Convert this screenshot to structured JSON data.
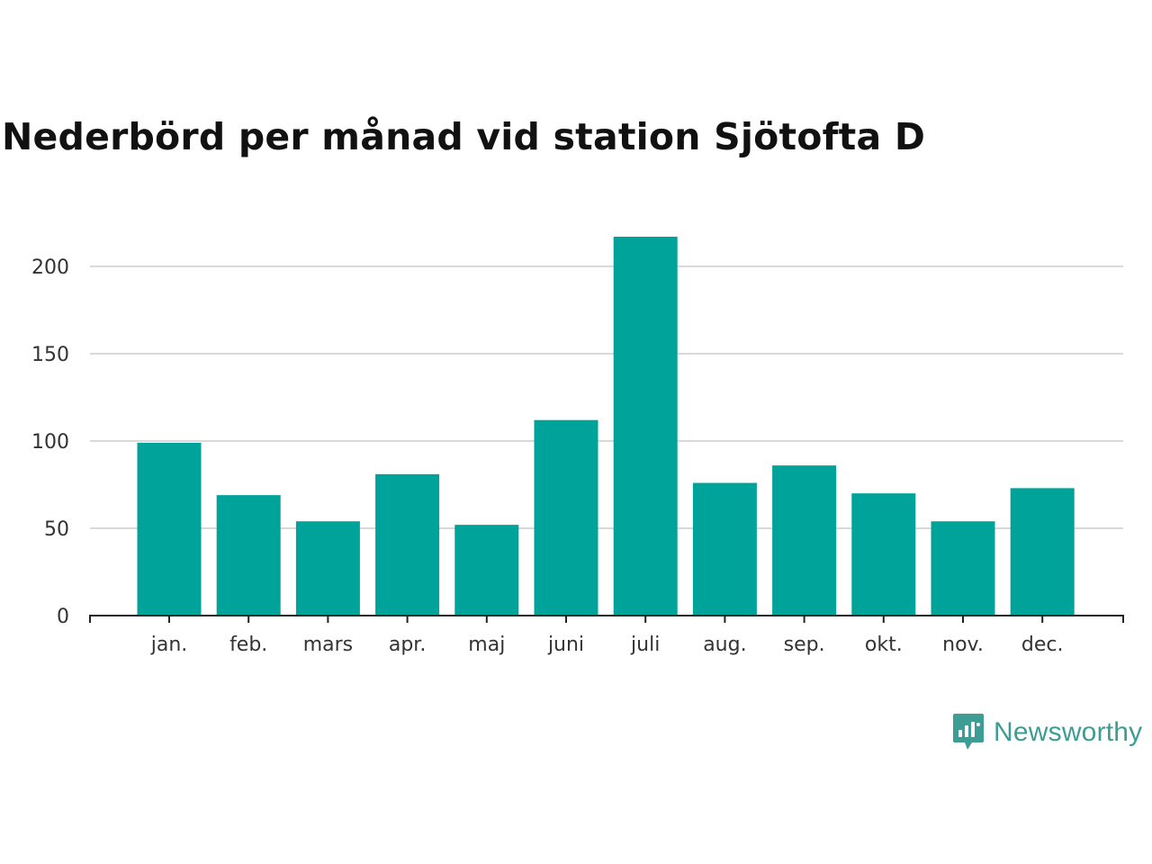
{
  "title": "Nederbörd per månad vid station Sjötofta D",
  "brand": {
    "name": "Newsworthy",
    "color": "#3d9c93",
    "icon": "newsworthy-logo-icon"
  },
  "chart_data": {
    "type": "bar",
    "title": "Nederbörd per månad vid station Sjötofta D",
    "xlabel": "",
    "ylabel": "",
    "categories": [
      "jan.",
      "feb.",
      "mars",
      "apr.",
      "maj",
      "juni",
      "juli",
      "aug.",
      "sep.",
      "okt.",
      "nov.",
      "dec."
    ],
    "values": [
      99,
      69,
      54,
      81,
      52,
      112,
      217,
      76,
      86,
      70,
      54,
      73
    ],
    "ylim": [
      0,
      225
    ],
    "yticks": [
      0,
      50,
      100,
      150,
      200
    ],
    "grid": true,
    "bar_color": "#00a39a",
    "grid_color": "#d9d9d9",
    "axis_color": "#222222"
  }
}
